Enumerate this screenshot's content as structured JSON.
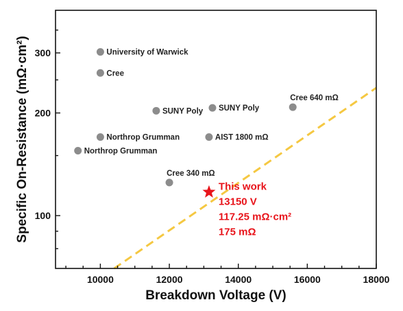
{
  "chart_data": {
    "type": "scatter",
    "xlabel": "Breakdown Voltage (V)",
    "ylabel": "Specific On-Resistance (mΩ·cm²)",
    "xlim": [
      8700,
      18000
    ],
    "ylim": [
      70,
      400
    ],
    "yscale": "log",
    "xticks": [
      10000,
      12000,
      14000,
      16000,
      18000
    ],
    "xtick_labels": [
      "10000",
      "12000",
      "14000",
      "16000",
      "18000"
    ],
    "yticks": [
      100,
      200,
      300
    ],
    "ytick_labels": [
      "100",
      "200",
      "300"
    ],
    "grid": false,
    "legend": "none",
    "points": [
      {
        "x": 10000,
        "y": 302,
        "label": "University of Warwick"
      },
      {
        "x": 10000,
        "y": 262,
        "label": "Cree"
      },
      {
        "x": 11620,
        "y": 203,
        "label": "SUNY Poly"
      },
      {
        "x": 13250,
        "y": 207,
        "label": "SUNY Poly"
      },
      {
        "x": 15580,
        "y": 208,
        "label": "Cree 640 mΩ"
      },
      {
        "x": 10000,
        "y": 170,
        "label": "Northrop Grumman"
      },
      {
        "x": 9350,
        "y": 155,
        "label": "Northrop Grumman"
      },
      {
        "x": 13150,
        "y": 170,
        "label": "AIST 1800 mΩ"
      },
      {
        "x": 12000,
        "y": 125,
        "label": "Cree 340 mΩ"
      }
    ],
    "highlight": {
      "x": 13150,
      "y": 117.25,
      "lines": [
        "This work",
        "13150 V",
        "117.25 mΩ·cm²",
        "175 mΩ"
      ],
      "color": "#e8141b"
    },
    "trend_line": {
      "x": [
        10400,
        18000
      ],
      "y": [
        70,
        237
      ],
      "style": "dashed",
      "color": "#f5c842"
    },
    "point_color": "#8c8c8c"
  }
}
